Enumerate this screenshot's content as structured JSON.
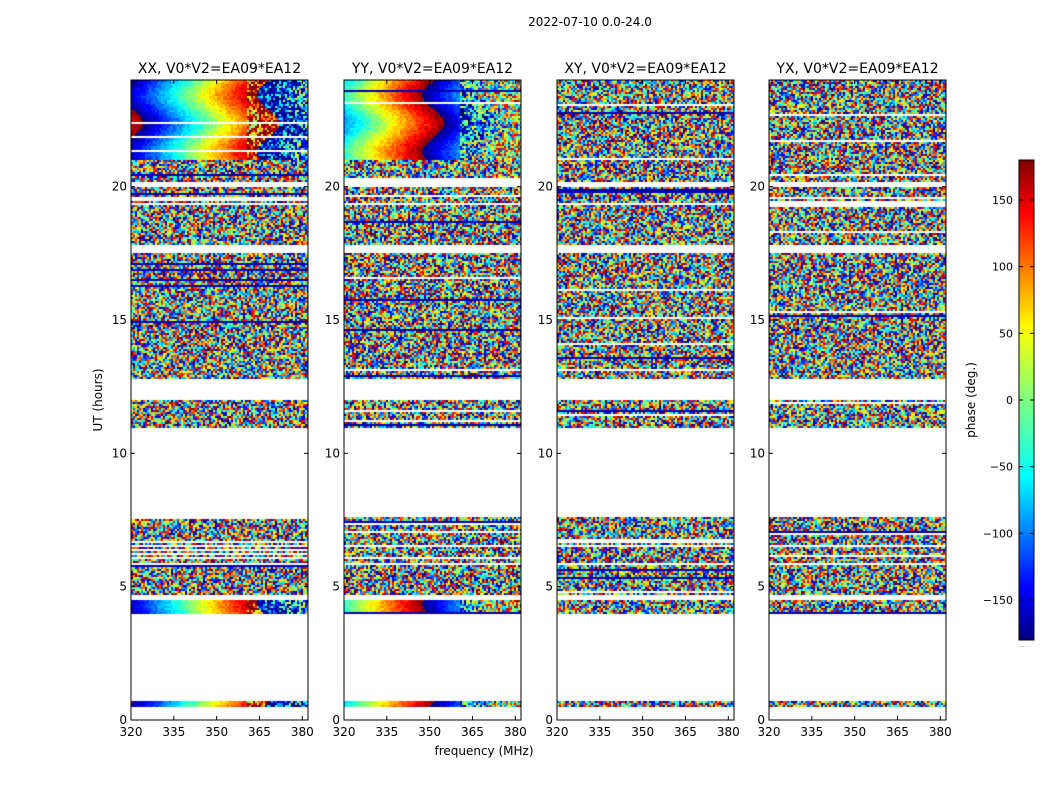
{
  "chart_data": {
    "type": "heatmap",
    "title": "2022-07-10 0.0-24.0",
    "xlabel": "frequency (MHz)",
    "ylabel": "UT (hours)",
    "xlim": [
      320,
      382
    ],
    "ylim": [
      0,
      24
    ],
    "x_ticks": [
      "320",
      "335",
      "350",
      "365",
      "380"
    ],
    "x_tick_values": [
      320,
      335,
      350,
      365,
      380
    ],
    "y_ticks": [
      "0",
      "5",
      "10",
      "15",
      "20"
    ],
    "y_tick_values": [
      0,
      5,
      10,
      15,
      20
    ],
    "panels": [
      {
        "title": "XX, V0*V2=EA09*EA12",
        "pol": "XX",
        "style": "coherent"
      },
      {
        "title": "YY, V0*V2=EA09*EA12",
        "pol": "YY",
        "style": "coherent"
      },
      {
        "title": "XY, V0*V2=EA09*EA12",
        "pol": "XY",
        "style": "noisy"
      },
      {
        "title": "YX, V0*V2=EA09*EA12",
        "pol": "YX",
        "style": "noisy"
      }
    ],
    "data_time_ranges_hours": [
      [
        0.5,
        0.7
      ],
      [
        4.0,
        4.5
      ],
      [
        4.7,
        5.8
      ],
      [
        5.9,
        6.5
      ],
      [
        6.6,
        7.6
      ],
      [
        11.0,
        12.0
      ],
      [
        12.8,
        17.5
      ],
      [
        17.8,
        19.3
      ],
      [
        19.4,
        20.0
      ],
      [
        20.2,
        21.0
      ],
      [
        21.0,
        24.0
      ]
    ],
    "colorbar": {
      "label": "phase (deg.)",
      "range": [
        -180,
        180
      ],
      "ticks": [
        "150",
        "100",
        "50",
        "0",
        "−50",
        "−100",
        "−150"
      ],
      "tick_values": [
        150,
        100,
        50,
        0,
        -50,
        -100,
        -150
      ],
      "colormap": "jet"
    }
  }
}
